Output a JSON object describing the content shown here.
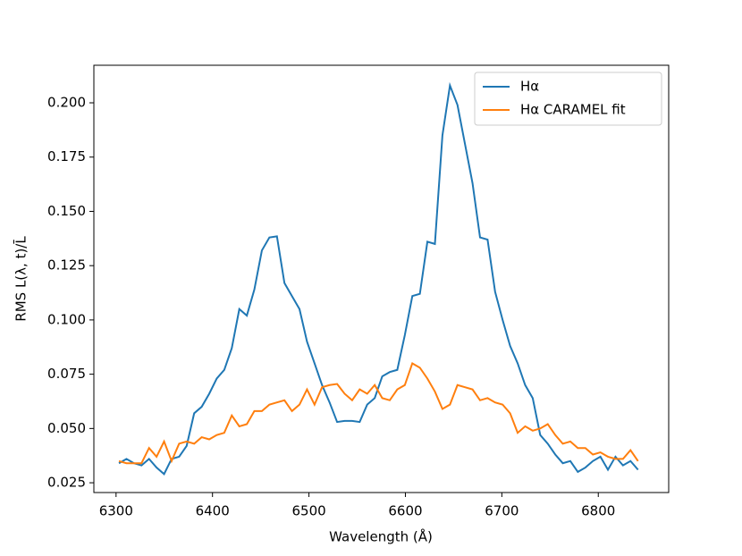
{
  "chart_data": {
    "type": "line",
    "xlabel": "Wavelength (Å)",
    "ylabel": "RMS L(λ, t)/L̄",
    "x": [
      6303,
      6310.8,
      6318.6,
      6326.4,
      6334.2,
      6342,
      6349.8,
      6357.6,
      6365.4,
      6373.2,
      6381,
      6388.8,
      6396.6,
      6404.4,
      6412.2,
      6420,
      6427.8,
      6435.6,
      6443.4,
      6451.2,
      6459,
      6466.8,
      6474.6,
      6482.4,
      6490.2,
      6498,
      6505.8,
      6513.6,
      6521.4,
      6529.2,
      6537,
      6544.8,
      6552.6,
      6560.4,
      6568.2,
      6576,
      6583.8,
      6591.6,
      6599.4,
      6607.2,
      6615,
      6622.8,
      6630.6,
      6638.4,
      6646.2,
      6654,
      6661.8,
      6669.6,
      6677.4,
      6685.2,
      6693,
      6700.8,
      6708.6,
      6716.4,
      6724.2,
      6732,
      6739.8,
      6747.6,
      6755.4,
      6763.2,
      6771,
      6778.8,
      6786.6,
      6794.4,
      6802.2,
      6810,
      6817.8,
      6825.6,
      6833.4,
      6841.2
    ],
    "series": [
      {
        "name": "Hα",
        "color": "#1f77b4",
        "values": [
          0.034,
          0.036,
          0.034,
          0.033,
          0.036,
          0.032,
          0.029,
          0.036,
          0.037,
          0.042,
          0.057,
          0.06,
          0.066,
          0.073,
          0.077,
          0.087,
          0.105,
          0.102,
          0.114,
          0.132,
          0.138,
          0.1385,
          0.117,
          0.111,
          0.105,
          0.09,
          0.08,
          0.07,
          0.062,
          0.053,
          0.0535,
          0.0535,
          0.053,
          0.061,
          0.064,
          0.074,
          0.076,
          0.077,
          0.093,
          0.111,
          0.112,
          0.136,
          0.135,
          0.185,
          0.208,
          0.199,
          0.181,
          0.163,
          0.138,
          0.137,
          0.113,
          0.1,
          0.088,
          0.08,
          0.07,
          0.064,
          0.047,
          0.043,
          0.038,
          0.034,
          0.035,
          0.03,
          0.032,
          0.035,
          0.037,
          0.031,
          0.037,
          0.033,
          0.035,
          0.031
        ]
      },
      {
        "name": "Hα CARAMEL fit",
        "color": "#ff7f0e",
        "values": [
          0.035,
          0.034,
          0.034,
          0.034,
          0.041,
          0.037,
          0.044,
          0.035,
          0.043,
          0.044,
          0.043,
          0.046,
          0.045,
          0.047,
          0.048,
          0.056,
          0.051,
          0.052,
          0.058,
          0.058,
          0.061,
          0.062,
          0.063,
          0.058,
          0.061,
          0.068,
          0.061,
          0.069,
          0.07,
          0.0705,
          0.066,
          0.063,
          0.068,
          0.066,
          0.07,
          0.064,
          0.063,
          0.068,
          0.07,
          0.08,
          0.078,
          0.073,
          0.067,
          0.059,
          0.061,
          0.07,
          0.069,
          0.068,
          0.063,
          0.064,
          0.062,
          0.061,
          0.057,
          0.048,
          0.051,
          0.049,
          0.05,
          0.052,
          0.047,
          0.043,
          0.044,
          0.041,
          0.041,
          0.038,
          0.039,
          0.037,
          0.036,
          0.036,
          0.04,
          0.035
        ]
      }
    ],
    "xlim": [
      6277,
      6873
    ],
    "ylim": [
      0.0205,
      0.2173
    ],
    "xticks": [
      6300,
      6400,
      6500,
      6600,
      6700,
      6800
    ],
    "yticks": [
      0.025,
      {
        "value": 0.05,
        "label": "0.050"
      },
      0.075,
      {
        "value": 0.1,
        "label": "0.100"
      },
      0.125,
      {
        "value": 0.15,
        "label": "0.150"
      },
      0.175,
      {
        "value": 0.2,
        "label": "0.200"
      }
    ],
    "legend": "upper right"
  }
}
